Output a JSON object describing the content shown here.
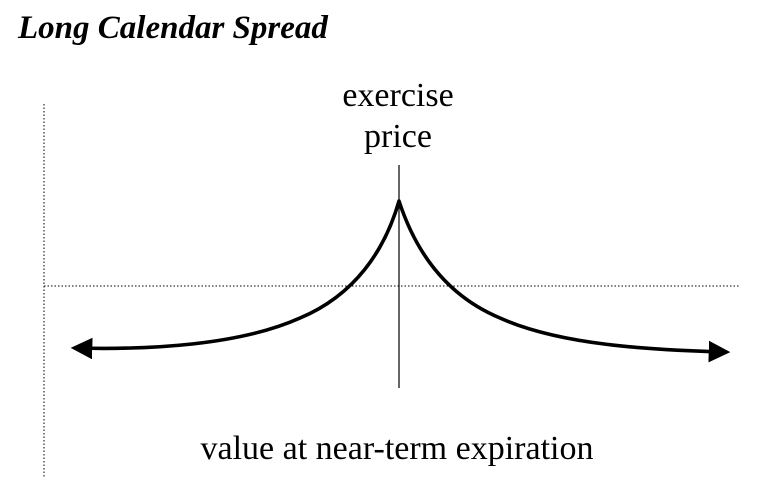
{
  "diagram": {
    "title": "Long Calendar Spread",
    "strike_label_line1": "exercise",
    "strike_label_line2": "price",
    "xlabel": "value at near-term expiration",
    "line_color": "#000000",
    "background": "#ffffff"
  }
}
